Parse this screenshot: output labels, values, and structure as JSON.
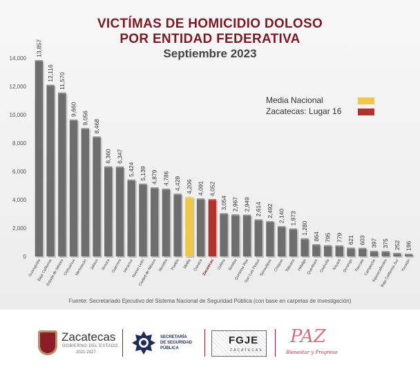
{
  "header": {
    "title_line1": "VICTÍMAS DE HOMICIDIO DOLOSO",
    "title_line2": "POR ENTIDAD FEDERATIVA",
    "subtitle": "Septiembre 2023"
  },
  "legend": {
    "items": [
      {
        "label": "Media Nacional",
        "color": "#f2c744"
      },
      {
        "label": "Zacatecas: Lugar 16",
        "color": "#b3322c"
      }
    ]
  },
  "source": "Fuente: Secretariado Ejecutivo del Sistema Nacional de Seguridad Pública (con base en carpetas de investigación)",
  "colors": {
    "default_bar": "#6e6e6e",
    "average_bar": "#f2c744",
    "highlight_bar": "#b3322c",
    "title": "#7a1a25"
  },
  "chart_data": {
    "type": "bar",
    "title": "VICTÍMAS DE HOMICIDIO DOLOSO POR ENTIDAD FEDERATIVA",
    "subtitle": "Septiembre 2023",
    "xlabel": "",
    "ylabel": "",
    "ylim": [
      0,
      14000
    ],
    "yticks": [
      0,
      2000,
      4000,
      6000,
      8000,
      10000,
      12000,
      14000
    ],
    "ytick_labels": [
      "0",
      "2,000",
      "4,000",
      "6,000",
      "8,000",
      "10,000",
      "12,000",
      "14,000"
    ],
    "grid": false,
    "legend_position": "top-right",
    "categories": [
      "Guanajuato",
      "Baja California",
      "Estado de México",
      "Chihuahua",
      "Michoacán",
      "Jalisco",
      "Sonora",
      "Guerrero",
      "Veracruz",
      "Nuevo León",
      "Ciudad de México",
      "Morelos",
      "Puebla",
      "Media",
      "Oaxaca",
      "Zacatecas",
      "Colima",
      "Sinaloa",
      "Quintana Roo",
      "San Luis Potosí",
      "Tamaulipas",
      "Chiapas",
      "Tabasco",
      "Hidalgo",
      "Querétaro",
      "Coahuila",
      "Nayarit",
      "Durango",
      "Tlaxcala",
      "Campeche",
      "Aguascalientes",
      "Baja California Sur",
      "Yucatán"
    ],
    "values": [
      13857,
      12116,
      11570,
      9660,
      9056,
      8468,
      6360,
      6347,
      5424,
      5139,
      4879,
      4786,
      4429,
      4206,
      4091,
      4052,
      3054,
      2967,
      2949,
      2614,
      2492,
      2140,
      1973,
      1280,
      864,
      795,
      779,
      621,
      603,
      397,
      375,
      252,
      196
    ],
    "value_labels": [
      "13,857",
      "12,116",
      "11,570",
      "9,660",
      "9,056",
      "8,468",
      "6,360",
      "6,347",
      "5,424",
      "5,139",
      "4,879",
      "4,786",
      "4,429",
      "4,206",
      "4,091",
      "4,052",
      "3,054",
      "2,967",
      "2,949",
      "2,614",
      "2,492",
      "2,140",
      "1,973",
      "1,280",
      "864",
      "795",
      "779",
      "621",
      "603",
      "397",
      "375",
      "252",
      "196"
    ],
    "average_category": "Media",
    "highlight_category": "Zacatecas"
  },
  "footer": {
    "logo1_name": "Zacatecas",
    "logo1_sub": "GOBIERNO DEL ESTADO",
    "logo1_years": "2021-2027",
    "logo2_line1": "SECRETARÍA",
    "logo2_line2": "DE SEGURIDAD",
    "logo2_line3": "PÚBLICA",
    "logo3_text": "FGJE",
    "logo3_sub": "ZACATECAS",
    "logo4_text": "PAZ",
    "logo4_sub": "Bienestar y Progreso"
  }
}
